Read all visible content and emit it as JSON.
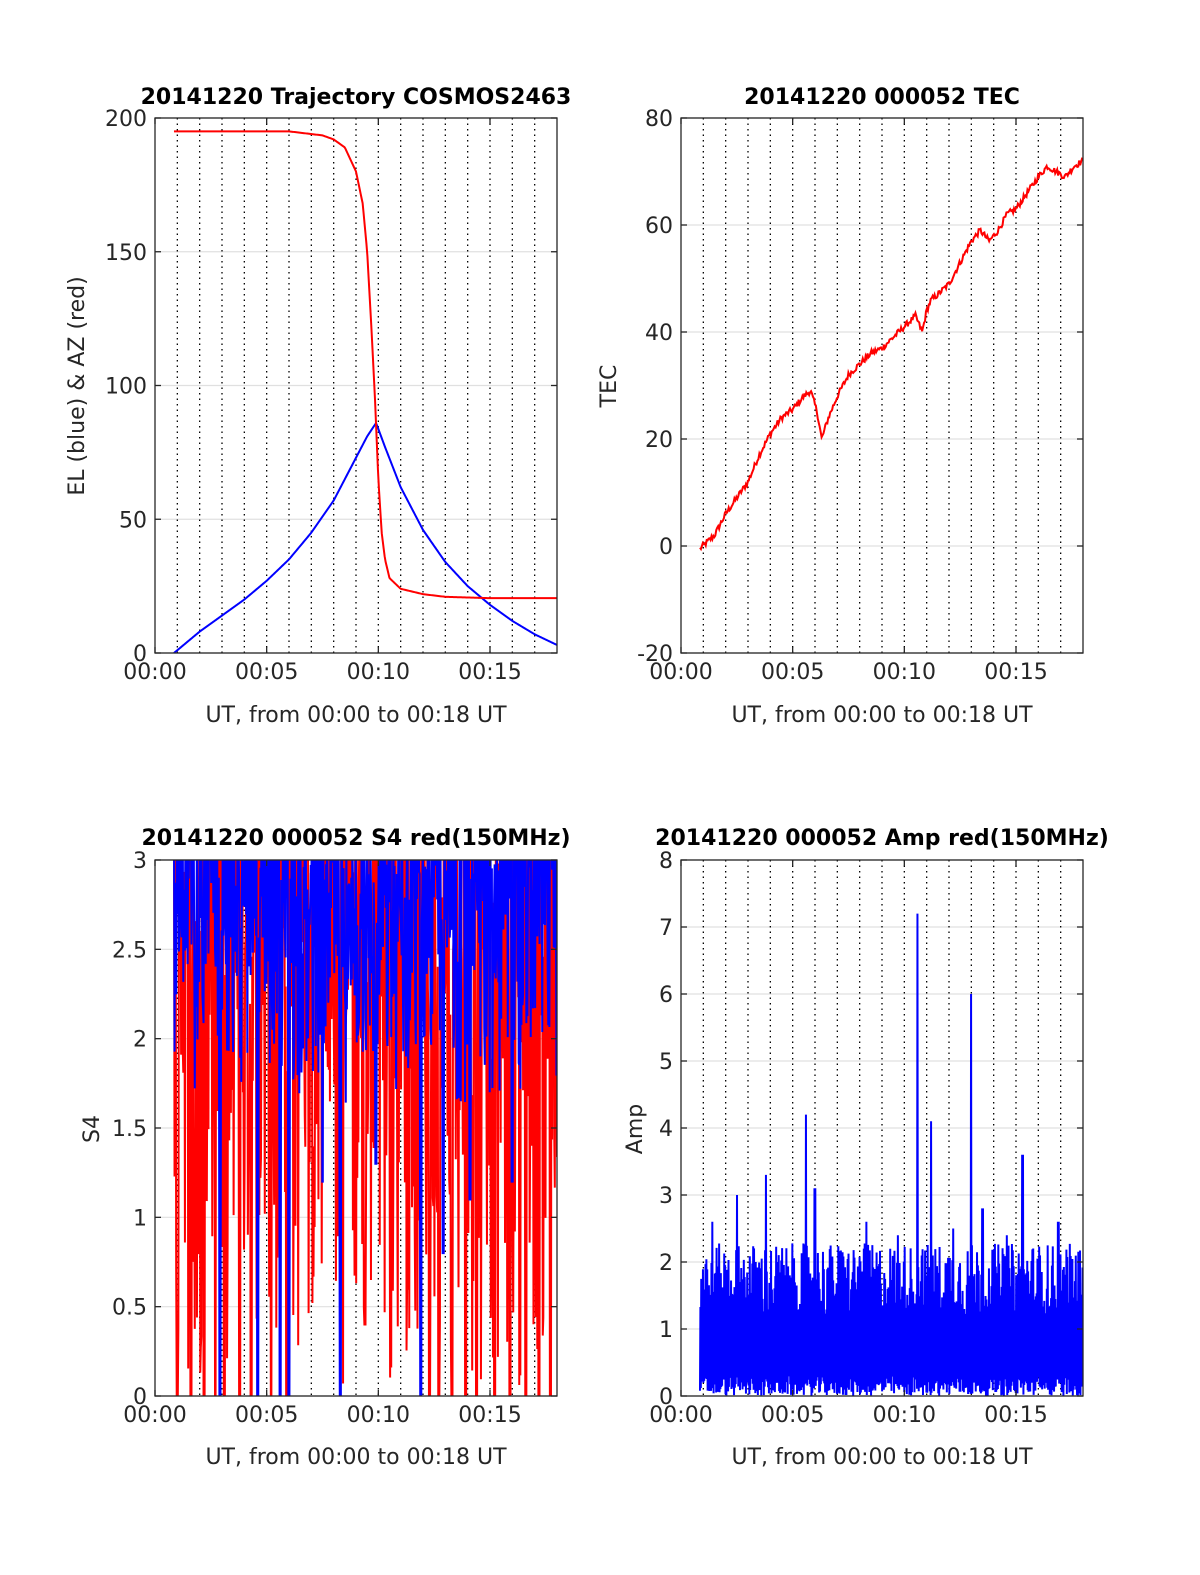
{
  "chart_data": [
    {
      "type": "line",
      "title": "20141220 Trajectory COSMOS2463",
      "xlabel": "UT, from 00:00 to 00:18 UT",
      "ylabel": "EL (blue) & AZ (red)",
      "xlim": [
        0,
        18
      ],
      "ylim": [
        0,
        200
      ],
      "xtick_values": [
        0,
        5,
        10,
        15
      ],
      "xtick_labels": [
        "00:00",
        "00:05",
        "00:10",
        "00:15"
      ],
      "yticks": [
        0,
        50,
        100,
        150,
        200
      ],
      "grid": "dotted vertical every minute, light horizontal at y ticks",
      "series": [
        {
          "color": "#0000ff",
          "x": [
            0.85,
            2,
            3,
            4,
            5,
            6,
            7,
            8,
            9,
            9.5,
            9.9,
            10.3,
            11,
            12,
            13,
            14,
            15,
            16,
            17,
            18
          ],
          "y": [
            0,
            8,
            14,
            20,
            27,
            35,
            45,
            57,
            73,
            81,
            86,
            77,
            62,
            46,
            34,
            25,
            18,
            12,
            7,
            3
          ]
        },
        {
          "color": "#ff0000",
          "x": [
            0.85,
            3,
            5,
            6,
            7,
            7.5,
            8,
            8.5,
            9,
            9.3,
            9.5,
            9.7,
            9.85,
            10,
            10.15,
            10.3,
            10.5,
            11,
            12,
            13,
            15,
            18
          ],
          "y": [
            195,
            195,
            195,
            195,
            194,
            193.5,
            192,
            189,
            180,
            168,
            150,
            120,
            95,
            65,
            45,
            35,
            28,
            24,
            22,
            21,
            20.5,
            20.5
          ]
        }
      ]
    },
    {
      "type": "line",
      "title": "20141220 000052 TEC",
      "xlabel": "UT, from 00:00 to 00:18 UT",
      "ylabel": "TEC",
      "xlim": [
        0,
        18
      ],
      "ylim": [
        -20,
        80
      ],
      "xtick_values": [
        0,
        5,
        10,
        15
      ],
      "xtick_labels": [
        "00:00",
        "00:05",
        "00:10",
        "00:15"
      ],
      "yticks": [
        -20,
        0,
        20,
        40,
        60,
        80
      ],
      "grid": "dotted vertical every minute, light horizontal at y ticks",
      "series": [
        {
          "color": "#ff0000",
          "x": [
            0.85,
            1.5,
            2,
            2.5,
            3,
            3.5,
            4,
            4.5,
            5,
            5.5,
            5.8,
            6.1,
            6.3,
            6.6,
            7,
            7.5,
            8,
            8.5,
            9,
            9.5,
            10,
            10.5,
            10.8,
            11,
            11.2,
            11.5,
            12,
            12.5,
            13,
            13.4,
            13.8,
            14.2,
            14.6,
            15,
            15.5,
            16,
            16.4,
            16.8,
            17.2,
            17.6,
            18
          ],
          "y": [
            -0.5,
            2,
            6,
            9,
            12,
            17,
            21,
            24,
            25.5,
            28,
            29,
            25,
            20,
            24,
            28,
            32,
            34,
            36,
            37,
            39,
            41,
            43,
            40,
            44,
            46,
            47,
            49,
            53,
            57,
            59,
            57,
            59,
            62,
            63,
            66,
            69,
            71,
            70,
            69,
            71,
            72
          ]
        }
      ]
    },
    {
      "type": "line",
      "title": "20141220 000052 S4 red(150MHz)",
      "xlabel": "UT, from 00:00 to 00:18 UT",
      "ylabel": "S4",
      "xlim": [
        0,
        18
      ],
      "ylim": [
        0,
        3
      ],
      "xtick_values": [
        0,
        5,
        10,
        15
      ],
      "xtick_labels": [
        "00:00",
        "00:05",
        "00:10",
        "00:15"
      ],
      "yticks": [
        0,
        0.5,
        1,
        1.5,
        2,
        2.5,
        3
      ],
      "ytick_labels": [
        "0",
        "0.5",
        "1",
        "1.5",
        "2",
        "2.5",
        "3"
      ],
      "grid": "dotted vertical every minute, light horizontal at y ticks",
      "note_series": "dense noisy traces, clipped at 3",
      "series": [
        {
          "color": "#ff0000",
          "x_start": 0.85,
          "x_end": 18,
          "typical_low": 0,
          "typical_high": 3,
          "dips_x": [
            1.0,
            1.6,
            2.2,
            2.7,
            3.1,
            3.8,
            4.3,
            5.2,
            5.9,
            8.2,
            9.4,
            11.3,
            12.3,
            12.7,
            13.3,
            13.9,
            14.4,
            15.2,
            15.9,
            16.6,
            17.2,
            17.7
          ],
          "dips_y": [
            0,
            0,
            0,
            0,
            0,
            0,
            0,
            0,
            0,
            0.9,
            0.4,
            0.6,
            0,
            0,
            0,
            0,
            0,
            0,
            0,
            0,
            0,
            0
          ]
        },
        {
          "color": "#0000ff",
          "x_start": 0.85,
          "x_end": 18,
          "typical_low": 1.6,
          "typical_high": 3,
          "dips_x": [
            2.9,
            4.6,
            5.6,
            6.0,
            7.5,
            8.3,
            9.9,
            11.9,
            12.9,
            14.1,
            16.0
          ],
          "dips_y": [
            0.0,
            0.0,
            0.0,
            0.0,
            1.2,
            0.0,
            1.3,
            0.0,
            0.8,
            1.1,
            1.2
          ]
        }
      ]
    },
    {
      "type": "line",
      "title": "20141220 000052 Amp red(150MHz)",
      "xlabel": "UT, from 00:00 to 00:18 UT",
      "ylabel": "Amp",
      "xlim": [
        0,
        18
      ],
      "ylim": [
        0,
        8
      ],
      "xtick_values": [
        0,
        5,
        10,
        15
      ],
      "xtick_labels": [
        "00:00",
        "00:05",
        "00:10",
        "00:15"
      ],
      "yticks": [
        0,
        1,
        2,
        3,
        4,
        5,
        6,
        7,
        8
      ],
      "grid": "dotted vertical every minute, light horizontal at y ticks",
      "note_series": "dense noisy trace from 0 up to about 2",
      "series": [
        {
          "color": "#0000ff",
          "x_start": 0.85,
          "x_end": 18,
          "typical_high": 1.9,
          "peaks_x": [
            1.4,
            2.5,
            3.8,
            5.6,
            6.0,
            8.3,
            9.7,
            10.6,
            11.2,
            12.2,
            13.0,
            13.5,
            14.6,
            15.3,
            16.9
          ],
          "peaks_y": [
            2.6,
            3.0,
            3.3,
            4.2,
            3.1,
            2.6,
            2.4,
            7.2,
            4.1,
            2.5,
            6.0,
            2.8,
            2.4,
            3.6,
            2.6
          ]
        }
      ]
    }
  ]
}
